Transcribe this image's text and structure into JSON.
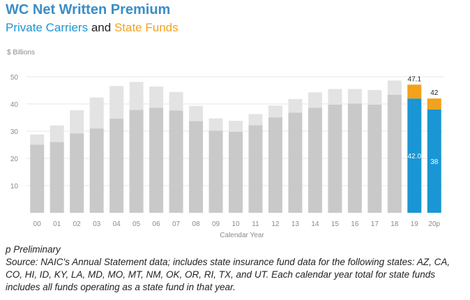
{
  "title": "WC Net Written Premium",
  "subtitle": {
    "part1": "Private Carriers",
    "part2": "and",
    "part3": "State Funds"
  },
  "colors": {
    "title": "#3a8ec6",
    "private_highlight": "#1a96d4",
    "state_highlight": "#f2a21b",
    "private_past": "#c9c9c9",
    "state_past": "#e3e3e3",
    "text": "#222222",
    "axis_text": "#8a8a8a",
    "gridline": "#e4e4e4"
  },
  "chart_data": {
    "type": "bar",
    "stacked": true,
    "ylabel": "$ Billions",
    "xlabel": "Calendar Year",
    "ylim": [
      0,
      50
    ],
    "yticks": [
      10,
      20,
      30,
      40,
      50
    ],
    "grid": true,
    "categories": [
      "00",
      "01",
      "02",
      "03",
      "04",
      "05",
      "06",
      "07",
      "08",
      "09",
      "10",
      "11",
      "12",
      "13",
      "14",
      "15",
      "16",
      "17",
      "18",
      "19",
      "20p"
    ],
    "series": [
      {
        "name": "Private Carriers",
        "values": [
          25.0,
          26.0,
          29.2,
          31.0,
          34.6,
          37.8,
          38.6,
          37.6,
          33.7,
          30.2,
          29.8,
          32.2,
          35.0,
          36.8,
          38.6,
          39.8,
          40.2,
          39.8,
          43.4,
          42.0,
          38.0
        ]
      },
      {
        "name": "State Funds",
        "values": [
          3.8,
          6.1,
          8.5,
          11.4,
          12.0,
          10.3,
          7.8,
          6.8,
          5.6,
          4.5,
          4.0,
          4.1,
          4.4,
          5.0,
          5.7,
          5.7,
          5.3,
          5.3,
          5.2,
          5.1,
          4.0
        ]
      }
    ],
    "highlight_categories": [
      "19",
      "20p"
    ],
    "data_labels": [
      {
        "category": "19",
        "total": "47.1",
        "inside": "42.0"
      },
      {
        "category": "20p",
        "total": "42",
        "inside": "38"
      }
    ]
  },
  "footnote": {
    "line1": "p Preliminary",
    "line2": "Source: NAIC's Annual Statement data; includes state insurance fund data for the following states: AZ, CA, CO, HI, ID, KY, LA, MD, MO, MT, NM, OK, OR, RI, TX, and UT. Each calendar year total for state funds includes all funds operating as a state fund in that year."
  }
}
